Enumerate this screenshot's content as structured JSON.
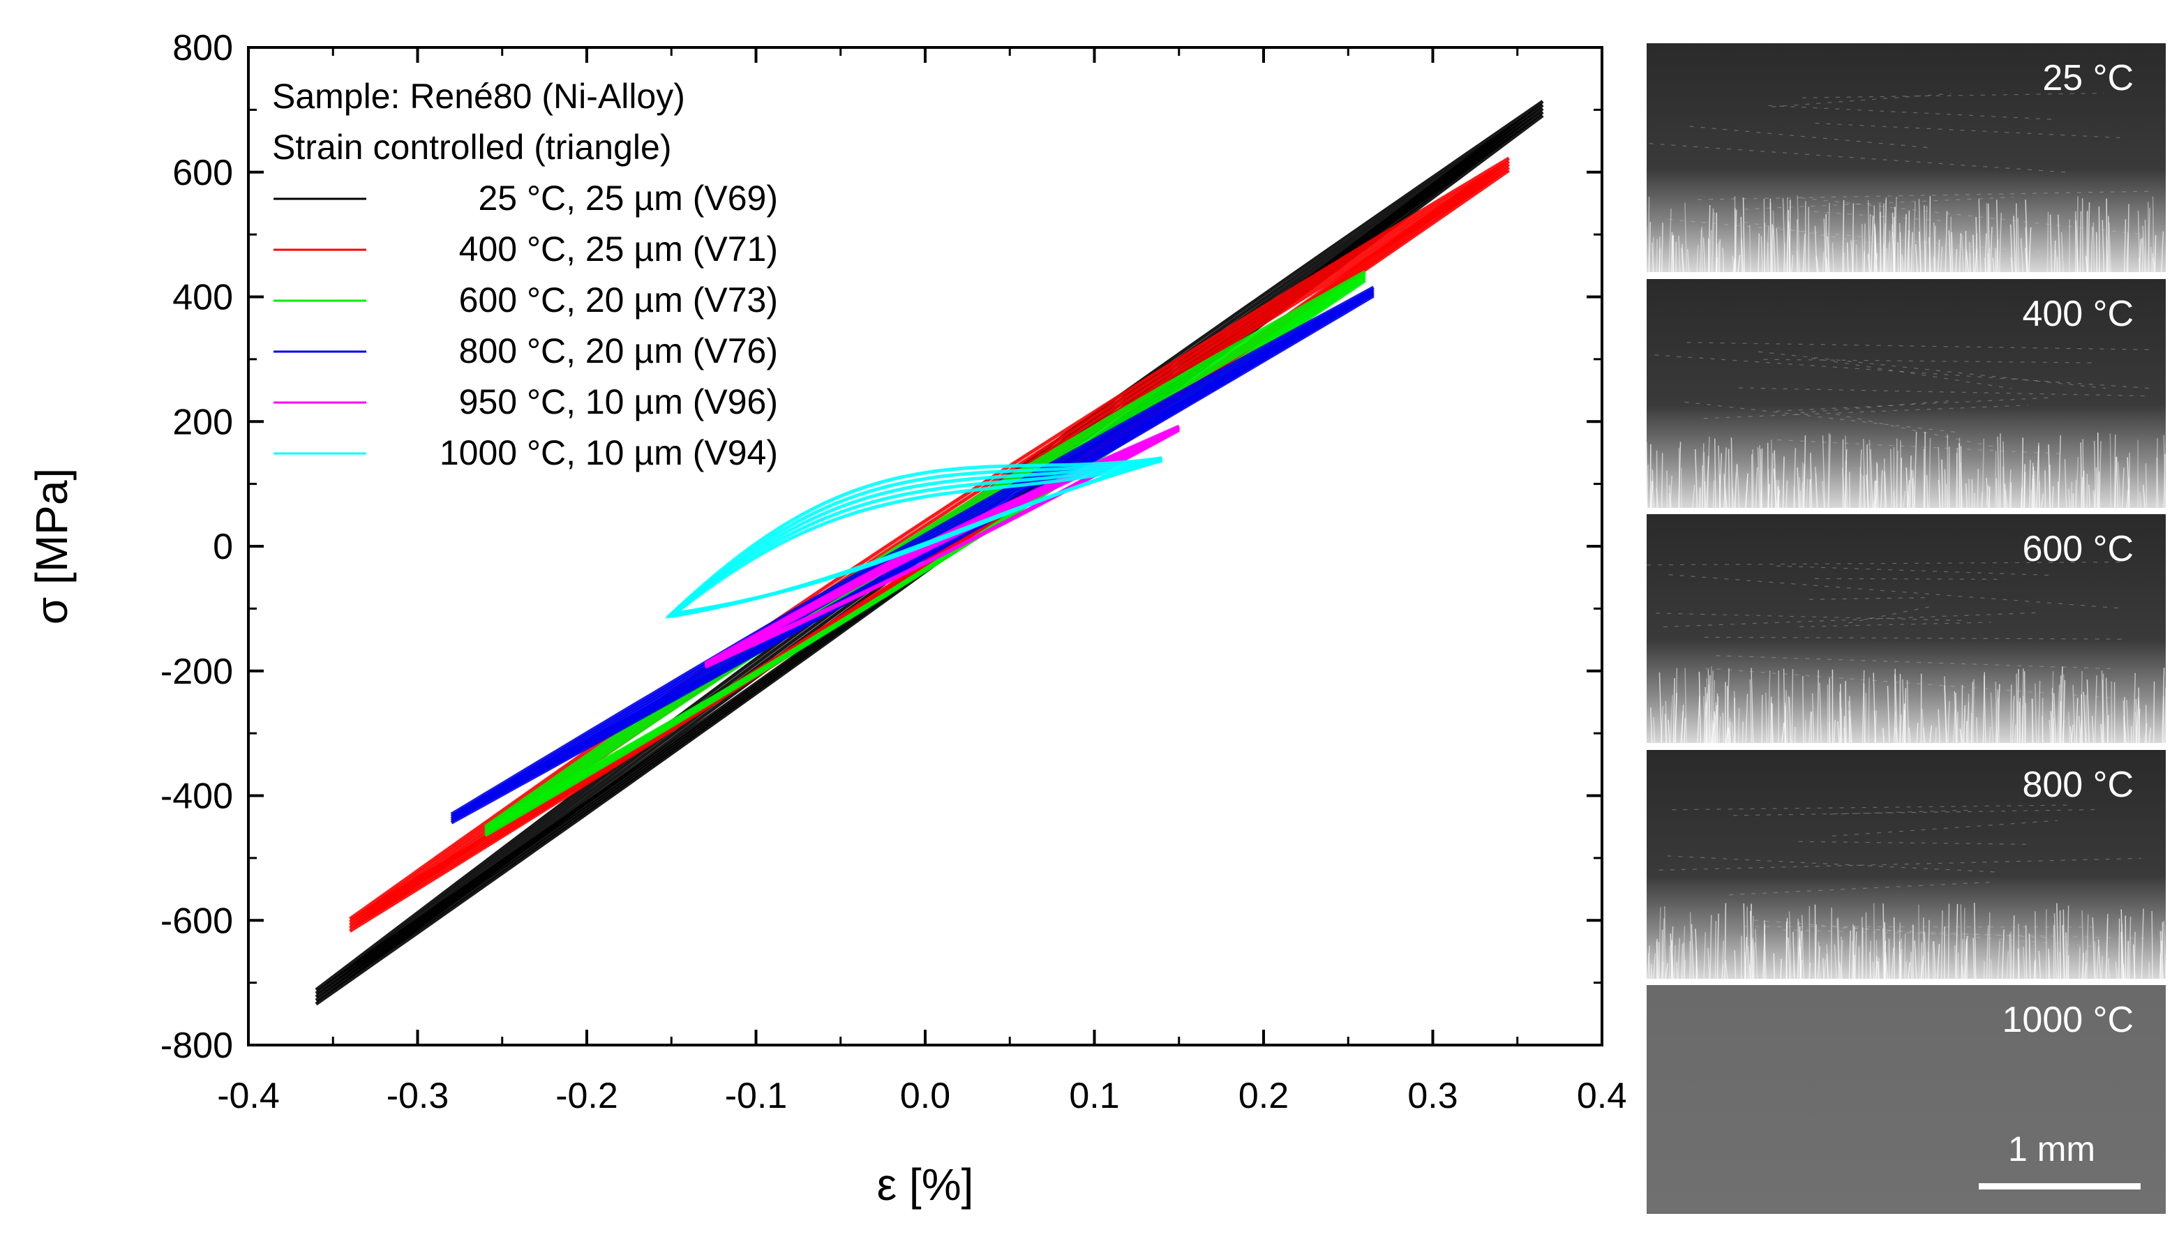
{
  "chart_data": {
    "type": "line",
    "xlabel": "ε [%]",
    "ylabel": "σ [MPa]",
    "xlim": [
      -0.4,
      0.4
    ],
    "ylim": [
      -800,
      800
    ],
    "xticks": [
      -0.4,
      -0.3,
      -0.2,
      -0.1,
      0.0,
      0.1,
      0.2,
      0.3,
      0.4
    ],
    "xtick_labels": [
      "-0.4",
      "-0.3",
      "-0.2",
      "-0.1",
      "0.0",
      "0.1",
      "0.2",
      "0.3",
      "0.4"
    ],
    "yticks": [
      -800,
      -600,
      -400,
      -200,
      0,
      200,
      400,
      600,
      800
    ],
    "ytick_labels": [
      "-800",
      "-600",
      "-400",
      "-200",
      "0",
      "200",
      "400",
      "600",
      "800"
    ],
    "legend_header": [
      "Sample: René80 (Ni-Alloy)",
      "Strain controlled (triangle)"
    ],
    "legend_position": "top-left",
    "series": [
      {
        "name": "25 °C, 25 µm (V69)",
        "color": "#000000",
        "shape": "lens",
        "x": [
          -0.36,
          0.365
        ],
        "y": [
          -720,
          705
        ],
        "loop_width": 0.012
      },
      {
        "name": "400 °C, 25 µm (V71)",
        "color": "#ff0000",
        "shape": "lens",
        "x": [
          -0.34,
          0.345
        ],
        "y": [
          -605,
          615
        ],
        "loop_width": 0.02
      },
      {
        "name": "600 °C, 20 µm (V73)",
        "color": "#00ee00",
        "shape": "lens",
        "x": [
          -0.26,
          0.26
        ],
        "y": [
          -455,
          435
        ],
        "loop_width": 0.02
      },
      {
        "name": "800 °C, 20 µm (V76)",
        "color": "#0000ee",
        "shape": "lens",
        "x": [
          -0.28,
          0.265
        ],
        "y": [
          -435,
          410
        ],
        "loop_width": 0.01
      },
      {
        "name": "950 °C, 10 µm (V96)",
        "color": "#ff00ff",
        "shape": "lens",
        "x": [
          -0.13,
          0.15
        ],
        "y": [
          -190,
          190
        ],
        "loop_width": 0.012
      },
      {
        "name": "1000 °C, 10 µm (V94)",
        "color": "#00ffff",
        "shape": "s-loop",
        "x": [
          -0.15,
          0.14
        ],
        "y": [
          -110,
          140
        ],
        "loop_width": 0.05
      }
    ]
  },
  "micrographs": {
    "panels": [
      {
        "label": "25 °C",
        "tone": "dark"
      },
      {
        "label": "400 °C",
        "tone": "dark"
      },
      {
        "label": "600 °C",
        "tone": "dark"
      },
      {
        "label": "800 °C",
        "tone": "dark"
      },
      {
        "label": "1000 °C",
        "tone": "gray"
      }
    ],
    "scale_bar_label": "1 mm"
  }
}
